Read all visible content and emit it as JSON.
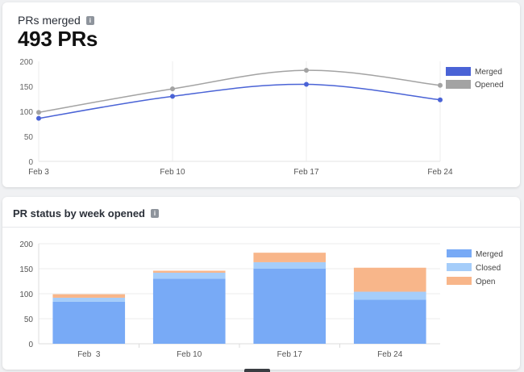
{
  "card1": {
    "title": "PRs merged",
    "info_icon": "info-icon",
    "big_value": "493 PRs"
  },
  "card2": {
    "title": "PR status by week opened",
    "info_icon": "info-icon"
  },
  "chart_data": [
    {
      "type": "line",
      "x": [
        "Feb 3",
        "Feb 10",
        "Feb 17",
        "Feb 24"
      ],
      "ylim": [
        0,
        200
      ],
      "yticks": [
        0,
        50,
        100,
        150,
        200
      ],
      "grid": true,
      "legend_position": "right",
      "series": [
        {
          "name": "Merged",
          "color": "#4a63d6",
          "values": [
            86,
            130,
            154,
            123
          ]
        },
        {
          "name": "Opened",
          "color": "#a3a3a3",
          "values": [
            98,
            145,
            182,
            152
          ]
        }
      ]
    },
    {
      "type": "bar",
      "stacked": true,
      "categories": [
        "Feb  3",
        "Feb 10",
        "Feb 17",
        "Feb 24"
      ],
      "ylim": [
        0,
        200
      ],
      "yticks": [
        0,
        50,
        100,
        150,
        200
      ],
      "grid": true,
      "legend_position": "right",
      "series": [
        {
          "name": "Merged",
          "color": "#78aaf6",
          "values": [
            84,
            130,
            150,
            88
          ]
        },
        {
          "name": "Closed",
          "color": "#a5cdfa",
          "values": [
            8,
            12,
            13,
            16
          ]
        },
        {
          "name": "Open",
          "color": "#f8b68a",
          "values": [
            7,
            4,
            19,
            48
          ]
        }
      ]
    }
  ]
}
